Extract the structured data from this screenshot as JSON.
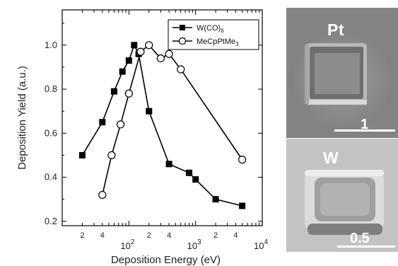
{
  "chart_data": {
    "type": "line",
    "xlabel": "Deposition Energy (eV)",
    "ylabel": "Deposition Yield (a.u.)",
    "xscale": "log",
    "xlim": [
      10,
      10000
    ],
    "ylim": [
      0.18,
      1.16
    ],
    "yticks": [
      0.2,
      0.4,
      0.6,
      0.8,
      1.0
    ],
    "ytick_labels": [
      "0.2",
      "0.4",
      "0.6",
      "0.8",
      "1.0"
    ],
    "xticks_major": [
      {
        "value": 100,
        "base": "10",
        "exp": "2"
      },
      {
        "value": 1000,
        "base": "10",
        "exp": "3"
      },
      {
        "value": 10000,
        "base": "10",
        "exp": "4"
      }
    ],
    "xticks_minor_labels": [
      {
        "value": 20,
        "label": "2"
      },
      {
        "value": 40,
        "label": "4"
      },
      {
        "value": 200,
        "label": "2"
      },
      {
        "value": 400,
        "label": "4"
      },
      {
        "value": 2000,
        "label": "2"
      },
      {
        "value": 4000,
        "label": "4"
      }
    ],
    "legend_position": "top-right",
    "series": [
      {
        "name_parts": [
          "W(CO)",
          "6"
        ],
        "marker": "filled-square",
        "color": "#000000",
        "x": [
          20,
          40,
          60,
          80,
          100,
          120,
          140,
          200,
          400,
          800,
          1000,
          2000,
          5000
        ],
        "y": [
          0.5,
          0.65,
          0.79,
          0.88,
          0.93,
          1.0,
          0.96,
          0.7,
          0.46,
          0.42,
          0.39,
          0.3,
          0.27
        ]
      },
      {
        "name_parts": [
          "MeCpPtMe",
          "3"
        ],
        "marker": "open-circle",
        "color": "#000000",
        "x": [
          40,
          55,
          75,
          100,
          150,
          200,
          300,
          400,
          600,
          5000
        ],
        "y": [
          0.32,
          0.5,
          0.64,
          0.78,
          0.97,
          1.0,
          0.94,
          0.96,
          0.89,
          0.48
        ]
      }
    ]
  },
  "micrographs": [
    {
      "label": "Pt",
      "scale_text": "1",
      "background": "#8a8a8a"
    },
    {
      "label": "W",
      "scale_text": "0.5",
      "background": "#c5c5c5"
    }
  ]
}
